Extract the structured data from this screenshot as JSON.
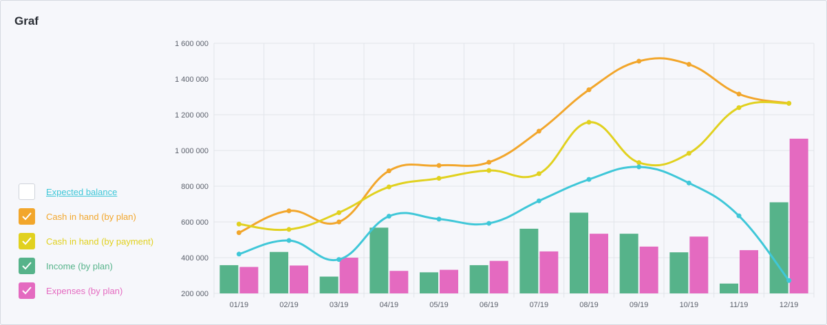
{
  "title": "Graf",
  "legend": [
    {
      "label": "Expected balance",
      "color": "#3fc7d8",
      "checked": false,
      "link": true
    },
    {
      "label": "Cash in hand (by plan)",
      "color": "#f2a62b",
      "checked": true,
      "link": false
    },
    {
      "label": "Cash in hand (by payment)",
      "color": "#e1d11f",
      "checked": true,
      "link": false
    },
    {
      "label": "Income (by plan)",
      "color": "#56b38a",
      "checked": true,
      "link": false
    },
    {
      "label": "Expenses (by plan)",
      "color": "#e46ac0",
      "checked": true,
      "link": false
    }
  ],
  "chart_data": {
    "type": "bar",
    "categories": [
      "01/19",
      "02/19",
      "03/19",
      "04/19",
      "05/19",
      "06/19",
      "07/19",
      "08/19",
      "09/19",
      "10/19",
      "11/19",
      "12/19"
    ],
    "ylim": [
      200000,
      1600000
    ],
    "yticks": [
      200000,
      400000,
      600000,
      800000,
      1000000,
      1200000,
      1400000,
      1600000
    ],
    "ytick_labels": [
      "200 000",
      "400 000",
      "600 000",
      "800 000",
      "1 000 000",
      "1 200 000",
      "1 400 000",
      "1 600 000"
    ],
    "grid": true,
    "series": [
      {
        "name": "Income (by plan)",
        "type": "bar",
        "color": "#56b38a",
        "values": [
          358000,
          432000,
          294000,
          568000,
          318000,
          358000,
          562000,
          652000,
          534000,
          430000,
          255000,
          710000
        ]
      },
      {
        "name": "Expenses (by plan)",
        "type": "bar",
        "color": "#e46ac0",
        "values": [
          348000,
          356000,
          400000,
          326000,
          332000,
          382000,
          435000,
          534000,
          462000,
          518000,
          442000,
          1066000
        ]
      },
      {
        "name": "Cash in hand (by plan)",
        "type": "line",
        "color": "#f2a62b",
        "values": [
          540000,
          662000,
          600000,
          886000,
          916000,
          934000,
          1108000,
          1340000,
          1500000,
          1482000,
          1316000,
          1264000
        ]
      },
      {
        "name": "Cash in hand (by payment)",
        "type": "line",
        "color": "#e1d11f",
        "values": [
          588000,
          558000,
          652000,
          796000,
          844000,
          888000,
          870000,
          1158000,
          932000,
          984000,
          1240000,
          1264000
        ]
      },
      {
        "name": "Expected balance",
        "type": "line",
        "color": "#3fc7d8",
        "values": [
          420000,
          496000,
          390000,
          632000,
          616000,
          592000,
          718000,
          838000,
          908000,
          818000,
          634000,
          272000
        ]
      }
    ]
  }
}
